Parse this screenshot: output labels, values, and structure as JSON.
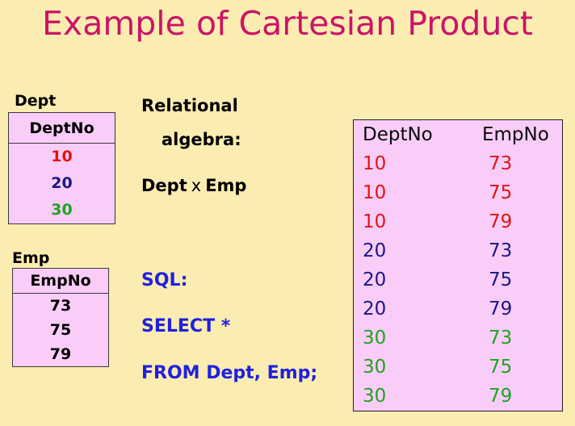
{
  "title": "Example of Cartesian Product",
  "colors": {
    "background": "#FBECB1",
    "title": "#CA1467",
    "table_fill": "#F9CDF8",
    "red": "#E01414",
    "navy": "#181885",
    "green": "#1FA41F",
    "sql_blue": "#2020DF",
    "black": "#000000"
  },
  "dept_table": {
    "label": "Dept",
    "header": "DeptNo",
    "rows": [
      {
        "value": "10",
        "color": "#E01414"
      },
      {
        "value": "20",
        "color": "#181885"
      },
      {
        "value": "30",
        "color": "#1FA41F"
      }
    ]
  },
  "emp_table": {
    "label": "Emp",
    "header": "EmpNo",
    "rows": [
      {
        "value": "73",
        "color": "#000000"
      },
      {
        "value": "75",
        "color": "#000000"
      },
      {
        "value": "79",
        "color": "#000000"
      }
    ]
  },
  "algebra": {
    "heading_line1": "Relational",
    "heading_line2": "algebra:",
    "operand_left": "Dept",
    "operator": "x",
    "operand_right": "Emp"
  },
  "sql": {
    "label": "SQL:",
    "select_line": "SELECT *",
    "from_line": "FROM Dept, Emp;"
  },
  "result_table": {
    "headers": [
      "DeptNo",
      "EmpNo"
    ],
    "rows": [
      {
        "dept": "10",
        "emp": "73",
        "color": "#E01414"
      },
      {
        "dept": "10",
        "emp": "75",
        "color": "#E01414"
      },
      {
        "dept": "10",
        "emp": "79",
        "color": "#E01414"
      },
      {
        "dept": "20",
        "emp": "73",
        "color": "#181885"
      },
      {
        "dept": "20",
        "emp": "75",
        "color": "#181885"
      },
      {
        "dept": "20",
        "emp": "79",
        "color": "#181885"
      },
      {
        "dept": "30",
        "emp": "73",
        "color": "#1FA41F"
      },
      {
        "dept": "30",
        "emp": "75",
        "color": "#1FA41F"
      },
      {
        "dept": "30",
        "emp": "79",
        "color": "#1FA41F"
      }
    ]
  }
}
